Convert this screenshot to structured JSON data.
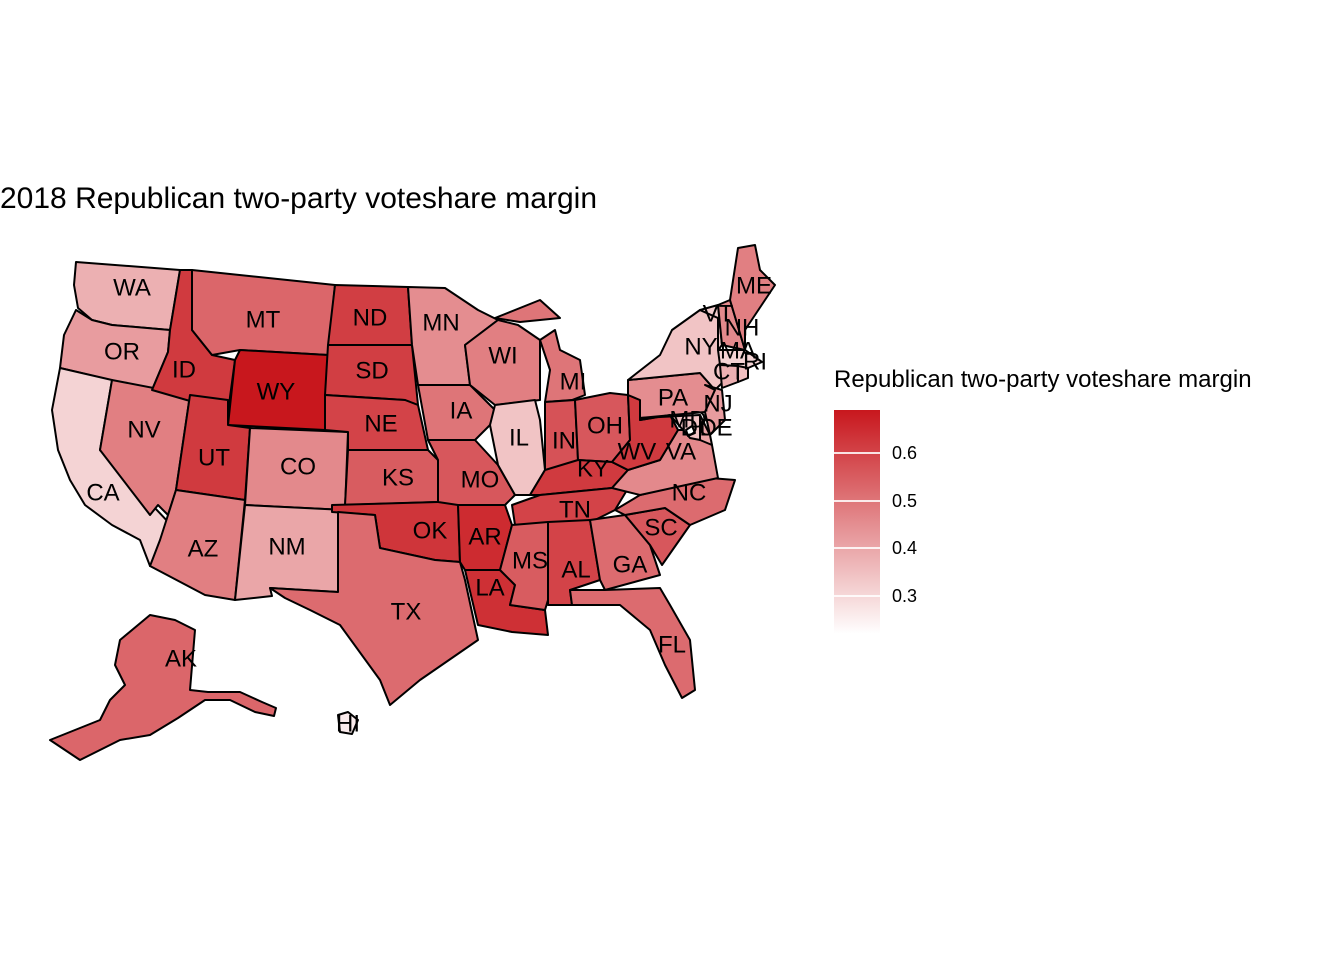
{
  "title": "2018 Republican two-party voteshare margin",
  "legend": {
    "title": "Republican two-party voteshare margin",
    "ticks": [
      "0.3",
      "0.4",
      "0.5",
      "0.6"
    ],
    "tick_values": [
      0.3,
      0.4,
      0.5,
      0.6
    ],
    "min": 0.22,
    "max": 0.69,
    "color_low": "#ffffff",
    "color_high": "#c8171d"
  },
  "states": {
    "WA": 0.38,
    "OR": 0.42,
    "CA": 0.31,
    "NV": 0.48,
    "ID": 0.62,
    "MT": 0.53,
    "WY": 0.69,
    "UT": 0.62,
    "AZ": 0.48,
    "CO": 0.46,
    "NM": 0.4,
    "ND": 0.61,
    "SD": 0.61,
    "NE": 0.6,
    "KS": 0.55,
    "OK": 0.63,
    "TX": 0.52,
    "MN": 0.45,
    "IA": 0.5,
    "MO": 0.56,
    "AR": 0.65,
    "LA": 0.64,
    "WI": 0.48,
    "IL": 0.34,
    "MI": 0.5,
    "IN": 0.57,
    "OH": 0.56,
    "KY": 0.62,
    "TN": 0.6,
    "MS": 0.55,
    "AL": 0.6,
    "GA": 0.52,
    "FL": 0.52,
    "SC": 0.56,
    "NC": 0.52,
    "VA": 0.46,
    "WV": 0.62,
    "PA": 0.45,
    "NY": 0.34,
    "VT": 0.32,
    "NH": 0.46,
    "ME": 0.48,
    "MA": 0.31,
    "RI": 0.35,
    "CT": 0.38,
    "NJ": 0.42,
    "DE": 0.4,
    "MD": 0.34,
    "DC": 0.22,
    "AK": 0.53,
    "HI": 0.26
  }
}
